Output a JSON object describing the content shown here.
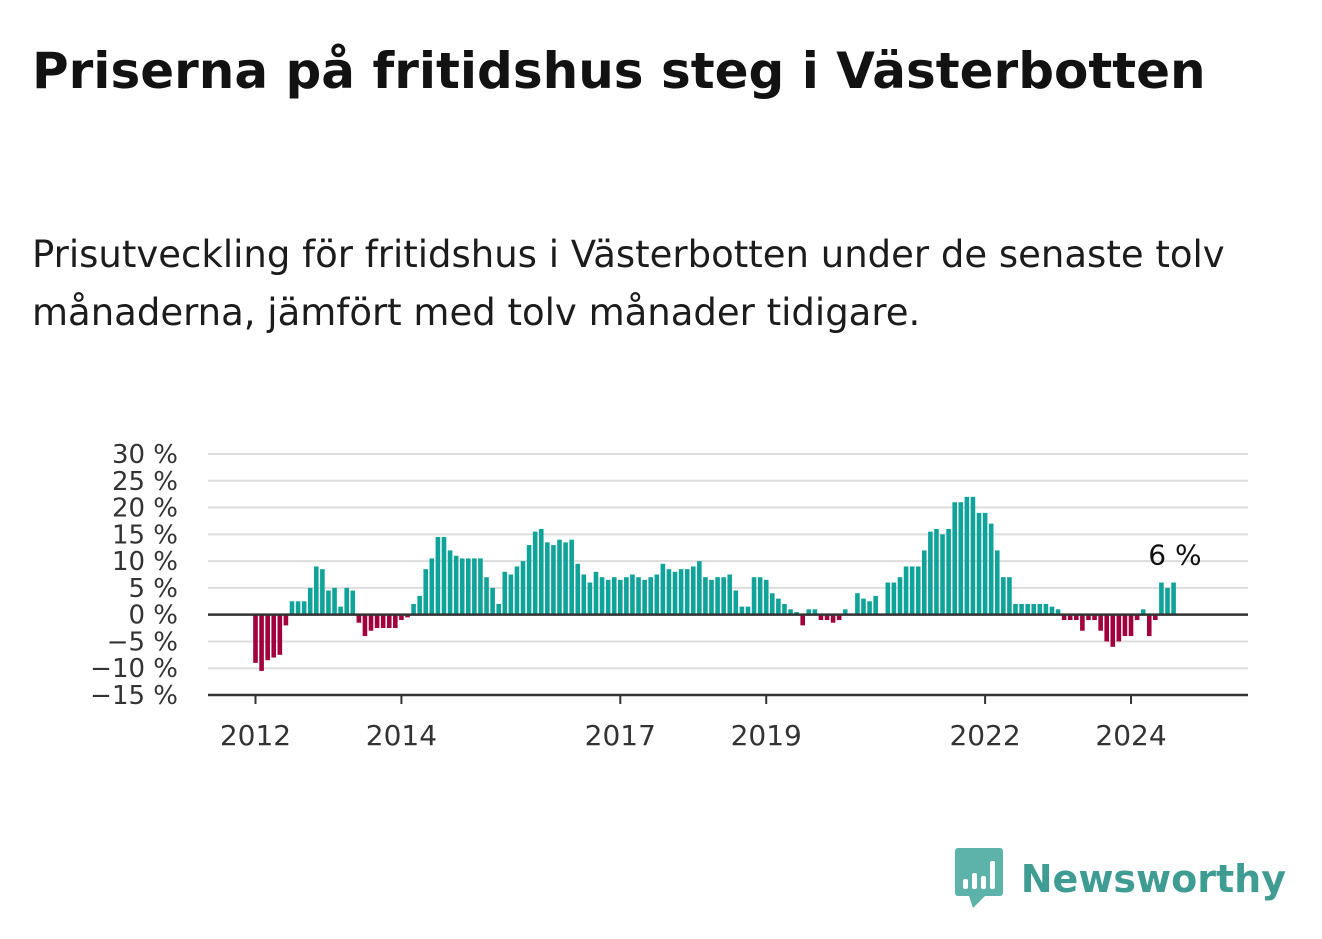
{
  "title": "Priserna på fritidshus steg i Västerbotten",
  "subtitle": "Prisutveckling för fritidshus i Västerbotten under de senaste tolv månaderna, jämfört med tolv månader tidigare.",
  "brand": {
    "name": "Newsworthy",
    "icon": "newsworthy-logo-icon"
  },
  "colors": {
    "positive": "#0fa39a",
    "negative": "#a1003d",
    "grid": "#dddddd",
    "axis": "#333333"
  },
  "chart_data": {
    "type": "bar",
    "title": "",
    "xlabel": "",
    "ylabel": "",
    "ylim": [
      -15,
      30
    ],
    "y_ticks": [
      "30 %",
      "25 %",
      "20 %",
      "15 %",
      "10 %",
      "5 %",
      "0 %",
      "−5 %",
      "−10 %",
      "−15 %"
    ],
    "y_tick_values": [
      30,
      25,
      20,
      15,
      10,
      5,
      0,
      -5,
      -10,
      -15
    ],
    "x_ticks": [
      "2012",
      "2014",
      "2017",
      "2019",
      "2022",
      "2024"
    ],
    "x_tick_index": [
      0,
      24,
      60,
      84,
      120,
      144
    ],
    "grid": true,
    "last_value_label": "6 %",
    "series": [
      {
        "values": [
          -9,
          -10.5,
          -8.5,
          -8,
          -7.5,
          -2,
          2.5,
          2.5,
          2.5,
          5,
          9,
          8.5,
          4.5,
          5,
          1.5,
          5,
          4.5,
          -1.5,
          -4,
          -3,
          -2.5,
          -2.5,
          -2.5,
          -2.5,
          -1,
          -0.5,
          2,
          3.5,
          8.5,
          10.5,
          14.5,
          14.5,
          12,
          11,
          10.5,
          10.5,
          10.5,
          10.5,
          7,
          5,
          2,
          8,
          7.5,
          9,
          10,
          13,
          15.5,
          16,
          13.5,
          13,
          14,
          13.5,
          14,
          9.5,
          7.5,
          6,
          8,
          7,
          6.5,
          7,
          6.5,
          7,
          7.5,
          7,
          6.5,
          7,
          7.5,
          9.5,
          8.5,
          8,
          8.5,
          8.5,
          9,
          10,
          7,
          6.5,
          7,
          7,
          7.5,
          4.5,
          1.5,
          1.5,
          7,
          7,
          6.5,
          4,
          3,
          2,
          1,
          0.5,
          -2,
          1,
          1,
          -1,
          -1,
          -1.5,
          -1,
          1,
          0,
          4,
          3,
          2.5,
          3.5,
          0,
          6,
          6,
          7,
          9,
          9,
          9,
          12,
          15.5,
          16,
          15,
          16,
          21,
          21,
          22,
          22,
          19,
          19,
          17,
          12,
          7,
          7,
          2,
          2,
          2,
          2,
          2,
          2,
          1.5,
          1,
          -1,
          -1,
          -1,
          -3,
          -1,
          -1,
          -3,
          -5,
          -6,
          -5,
          -4,
          -4,
          -1,
          1,
          -4,
          -1,
          6,
          5,
          6
        ]
      }
    ]
  }
}
